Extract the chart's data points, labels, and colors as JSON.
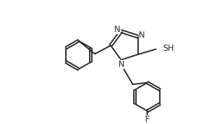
{
  "background": "#ffffff",
  "line_color": "#2a2a2a",
  "line_width": 1.4,
  "font_size": 8.5,
  "fig_width": 3.11,
  "fig_height": 1.78,
  "dpi": 100,
  "xlim": [
    0,
    10
  ],
  "ylim": [
    0,
    5.73
  ]
}
